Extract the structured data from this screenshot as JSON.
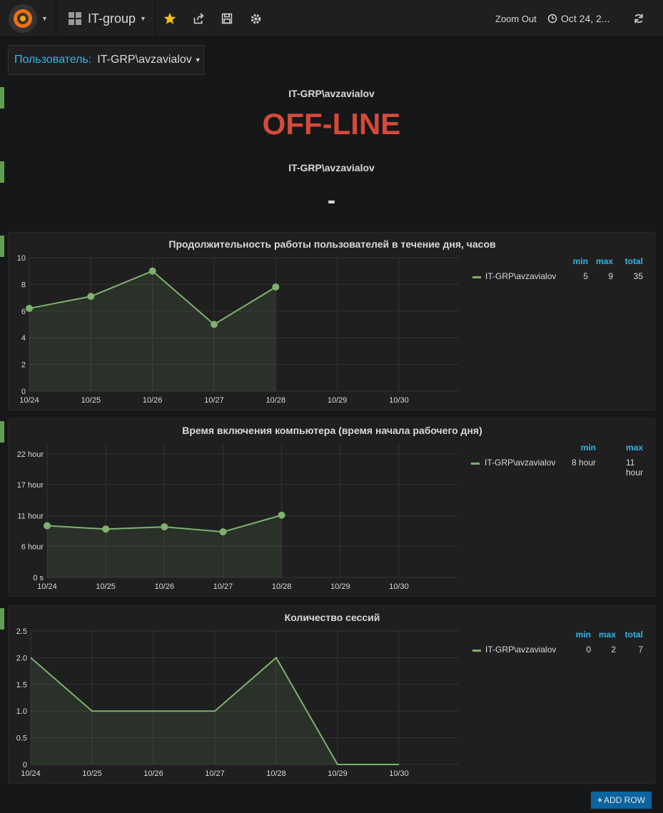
{
  "navbar": {
    "dashboard_title": "IT-group",
    "zoom_out": "Zoom Out",
    "time_range": "Oct 24, 2..."
  },
  "variable": {
    "label": "Пользователь:",
    "value": "IT-GRP\\avzavialov"
  },
  "status_panel": {
    "title": "IT-GRP\\avzavialov",
    "value": "OFF-LINE"
  },
  "second_stat_panel": {
    "title": "IT-GRP\\avzavialov",
    "value": "-"
  },
  "colors": {
    "series": "#7eb26d",
    "offline": "#d44a3a",
    "accent": "#33b5e5"
  },
  "chart_data": [
    {
      "type": "line",
      "title": "Продолжительность работы пользователей в течение дня, часов",
      "x": [
        "10/24",
        "10/25",
        "10/26",
        "10/27",
        "10/28",
        "10/29",
        "10/30"
      ],
      "series": [
        {
          "name": "IT-GRP\\avzavialov",
          "values": [
            6.2,
            7.1,
            9,
            5,
            7.8,
            null,
            null
          ]
        }
      ],
      "yticks": [
        "0",
        "2",
        "4",
        "6",
        "8",
        "10"
      ],
      "ylim": [
        0,
        10
      ],
      "points": true,
      "legend_headers": [
        "min",
        "max",
        "total"
      ],
      "legend_values": [
        "5",
        "9",
        "35"
      ]
    },
    {
      "type": "line",
      "title": "Время включения компьютера (время начала рабочего дня)",
      "x": [
        "10/24",
        "10/25",
        "10/26",
        "10/27",
        "10/28",
        "10/29",
        "10/30"
      ],
      "series": [
        {
          "name": "IT-GRP\\avzavialov",
          "values": [
            9.3,
            8.7,
            9.1,
            8.2,
            11.2,
            null,
            null
          ]
        }
      ],
      "yticks": [
        "0 s",
        "6 hour",
        "11 hour",
        "17 hour",
        "22 hour"
      ],
      "ytick_values": [
        0,
        5.6,
        11.1,
        16.7,
        22.2
      ],
      "ylim": [
        0,
        24
      ],
      "points": true,
      "legend_headers": [
        "min",
        "max"
      ],
      "legend_values": [
        "8 hour",
        "11 hour"
      ]
    },
    {
      "type": "line",
      "title": "Количество сессий",
      "x": [
        "10/24",
        "10/25",
        "10/26",
        "10/27",
        "10/28",
        "10/29",
        "10/30"
      ],
      "series": [
        {
          "name": "IT-GRP\\avzavialov",
          "values": [
            2,
            1,
            1,
            1,
            2,
            0,
            0
          ]
        }
      ],
      "yticks": [
        "0",
        "0.5",
        "1.0",
        "1.5",
        "2.0",
        "2.5"
      ],
      "ylim": [
        0,
        2.5
      ],
      "points": false,
      "legend_headers": [
        "min",
        "max",
        "total"
      ],
      "legend_values": [
        "0",
        "2",
        "7"
      ]
    }
  ],
  "add_row_label": "ADD ROW"
}
